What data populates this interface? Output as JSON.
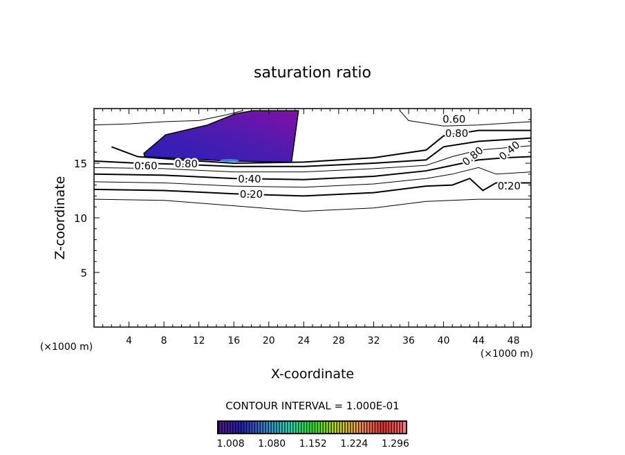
{
  "chart_data": {
    "type": "contour",
    "title": "saturation ratio",
    "xlabel": "X-coordinate",
    "ylabel": "Z-coordinate",
    "x_unit_left": "(×1000 m)",
    "x_unit_right": "(×1000 m)",
    "xlim": [
      0,
      50
    ],
    "ylim": [
      0,
      20
    ],
    "xticks": [
      4,
      8,
      12,
      16,
      20,
      24,
      28,
      32,
      36,
      40,
      44,
      48
    ],
    "yticks": [
      5,
      10,
      15
    ],
    "contour_interval_text": "CONTOUR INTERVAL = 1.000E-01",
    "contours": [
      {
        "level": 0.1,
        "label": "",
        "points": [
          [
            0,
            11.7
          ],
          [
            8,
            11.6
          ],
          [
            16,
            11.1
          ],
          [
            24,
            10.6
          ],
          [
            32,
            10.9
          ],
          [
            38,
            11.5
          ],
          [
            44,
            11.7
          ],
          [
            50,
            11.7
          ]
        ]
      },
      {
        "level": 0.2,
        "label": "0.20",
        "label_at": [
          18,
          12.2
        ],
        "points": [
          [
            0,
            12.6
          ],
          [
            8,
            12.5
          ],
          [
            16,
            12.2
          ],
          [
            24,
            12.0
          ],
          [
            32,
            12.3
          ],
          [
            38,
            12.9
          ],
          [
            41,
            13.0
          ],
          [
            43,
            13.6
          ],
          [
            44.5,
            12.5
          ],
          [
            46,
            13.2
          ],
          [
            50,
            13.2
          ]
        ]
      },
      {
        "level": 0.3,
        "label": "",
        "points": [
          [
            0,
            13.3
          ],
          [
            8,
            13.2
          ],
          [
            16,
            12.9
          ],
          [
            24,
            12.8
          ],
          [
            32,
            13.1
          ],
          [
            38,
            13.6
          ],
          [
            41,
            14.0
          ],
          [
            44,
            14.6
          ],
          [
            46,
            14.0
          ],
          [
            50,
            14.2
          ]
        ]
      },
      {
        "level": 0.4,
        "label": "0.40",
        "label_at": [
          17.8,
          13.6
        ],
        "points": [
          [
            0,
            14.0
          ],
          [
            8,
            13.9
          ],
          [
            16,
            13.6
          ],
          [
            24,
            13.5
          ],
          [
            32,
            13.8
          ],
          [
            38,
            14.3
          ],
          [
            41,
            14.8
          ],
          [
            44,
            15.3
          ],
          [
            47,
            15.5
          ],
          [
            50,
            15.6
          ]
        ]
      },
      {
        "level": 0.5,
        "label": "",
        "points": [
          [
            0,
            14.6
          ],
          [
            8,
            14.5
          ],
          [
            16,
            14.2
          ],
          [
            24,
            14.2
          ],
          [
            32,
            14.5
          ],
          [
            38,
            14.8
          ],
          [
            41,
            15.6
          ],
          [
            44,
            16.2
          ],
          [
            50,
            16.6
          ]
        ]
      },
      {
        "level": 0.6,
        "label": "0.60",
        "label_at": [
          7.2,
          14.8
        ],
        "points": [
          [
            0,
            15.2
          ],
          [
            5,
            15.0
          ],
          [
            10,
            14.9
          ],
          [
            16,
            14.7
          ],
          [
            24,
            14.7
          ],
          [
            32,
            15.0
          ],
          [
            38,
            15.3
          ],
          [
            40,
            16.5
          ],
          [
            44,
            17.0
          ],
          [
            50,
            17.3
          ]
        ]
      },
      {
        "level": 0.8,
        "label": "0.80",
        "label_at": [
          9.6,
          15.0
        ],
        "points": [
          [
            2,
            16.5
          ],
          [
            5,
            15.6
          ],
          [
            10,
            15.3
          ],
          [
            16,
            15.0
          ],
          [
            24,
            15.1
          ],
          [
            32,
            15.5
          ],
          [
            38,
            16.2
          ],
          [
            40,
            17.5
          ],
          [
            44,
            18.0
          ],
          [
            50,
            18.0
          ]
        ]
      },
      {
        "level": 0.9,
        "label": "",
        "points": [
          [
            0,
            18.5
          ],
          [
            4,
            18.6
          ],
          [
            8,
            18.8
          ],
          [
            12,
            18.9
          ],
          [
            15,
            19.4
          ],
          [
            17,
            19.8
          ]
        ]
      },
      {
        "level": 0.9,
        "label": "",
        "points": [
          [
            35,
            19.8
          ],
          [
            36,
            18.9
          ],
          [
            40,
            18.4
          ],
          [
            44,
            18.5
          ],
          [
            50,
            18.8
          ]
        ]
      }
    ],
    "inline_labels_right": [
      "0.60",
      "0.80",
      "0.80",
      "0.40"
    ],
    "filled_region_polygon": [
      [
        5.7,
        15.9
      ],
      [
        8.2,
        17.6
      ],
      [
        13.0,
        18.5
      ],
      [
        16.1,
        19.5
      ],
      [
        18.1,
        19.8
      ],
      [
        23.4,
        19.8
      ],
      [
        22.6,
        15.1
      ],
      [
        15.4,
        15.2
      ],
      [
        5.8,
        15.6
      ]
    ],
    "colorbar": {
      "range": [
        1.0,
        1.33
      ],
      "tick_labels": [
        "1.008",
        "1.080",
        "1.152",
        "1.224",
        "1.296"
      ],
      "colors": [
        "#5a1890",
        "#2020c0",
        "#1a90e0",
        "#20e0c0",
        "#20e020",
        "#c0e020",
        "#ffa020",
        "#ff2020",
        "#ff8080"
      ]
    },
    "fill_colors": {
      "dark": "#3a1aa8",
      "mid": "#5a18b0",
      "light": "#8010a8",
      "highlight": "#40a0ff"
    }
  }
}
